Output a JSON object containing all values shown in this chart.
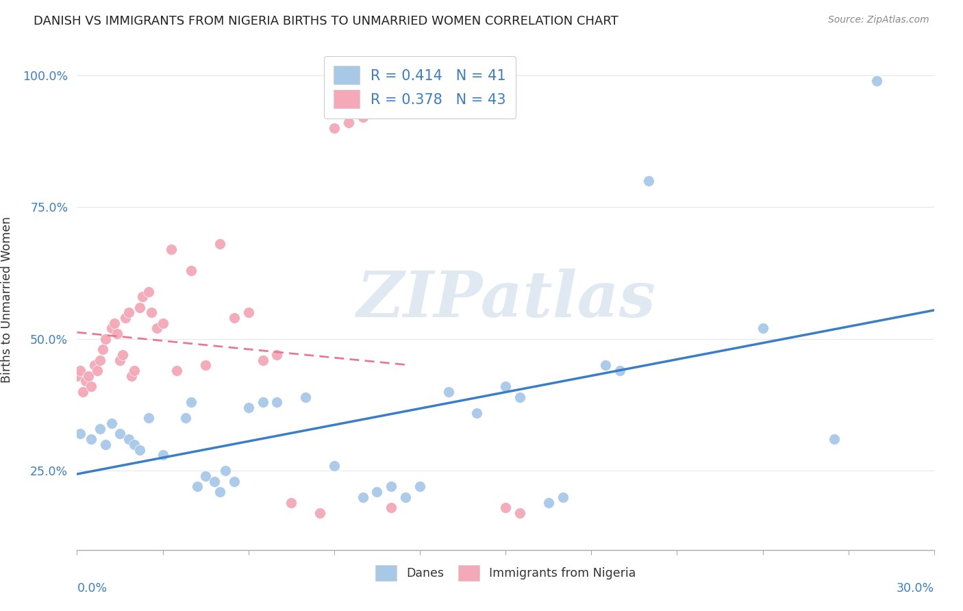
{
  "title": "DANISH VS IMMIGRANTS FROM NIGERIA BIRTHS TO UNMARRIED WOMEN CORRELATION CHART",
  "source": "Source: ZipAtlas.com",
  "ylabel": "Births to Unmarried Women",
  "yticks": [
    0.25,
    0.5,
    0.75,
    1.0
  ],
  "ytick_labels": [
    "25.0%",
    "50.0%",
    "75.0%",
    "100.0%"
  ],
  "xmin": 0.0,
  "xmax": 0.3,
  "ymin": 0.1,
  "ymax": 1.05,
  "danes_color": "#a8c8e8",
  "nigeria_color": "#f4a8b8",
  "danes_line_color": "#3a7ec8",
  "nigeria_line_color": "#e87a90",
  "legend_danes_label": "R = 0.414   N = 41",
  "legend_nigeria_label": "R = 0.378   N = 43",
  "danes_scatter_x": [
    0.001,
    0.005,
    0.008,
    0.01,
    0.012,
    0.015,
    0.018,
    0.02,
    0.022,
    0.025,
    0.03,
    0.038,
    0.04,
    0.042,
    0.045,
    0.048,
    0.05,
    0.052,
    0.055,
    0.06,
    0.065,
    0.07,
    0.08,
    0.09,
    0.1,
    0.105,
    0.11,
    0.115,
    0.12,
    0.13,
    0.14,
    0.15,
    0.155,
    0.165,
    0.17,
    0.185,
    0.19,
    0.2,
    0.24,
    0.265,
    0.28
  ],
  "danes_scatter_y": [
    0.32,
    0.31,
    0.33,
    0.3,
    0.34,
    0.32,
    0.31,
    0.3,
    0.29,
    0.35,
    0.28,
    0.35,
    0.38,
    0.22,
    0.24,
    0.23,
    0.21,
    0.25,
    0.23,
    0.37,
    0.38,
    0.38,
    0.39,
    0.26,
    0.2,
    0.21,
    0.22,
    0.2,
    0.22,
    0.4,
    0.36,
    0.41,
    0.39,
    0.19,
    0.2,
    0.45,
    0.44,
    0.8,
    0.52,
    0.31,
    0.99
  ],
  "nigeria_scatter_x": [
    0.0,
    0.001,
    0.002,
    0.003,
    0.004,
    0.005,
    0.006,
    0.007,
    0.008,
    0.009,
    0.01,
    0.012,
    0.013,
    0.014,
    0.015,
    0.016,
    0.017,
    0.018,
    0.019,
    0.02,
    0.022,
    0.023,
    0.025,
    0.026,
    0.028,
    0.03,
    0.033,
    0.035,
    0.04,
    0.045,
    0.05,
    0.055,
    0.06,
    0.065,
    0.07,
    0.075,
    0.085,
    0.09,
    0.095,
    0.1,
    0.11,
    0.15,
    0.155
  ],
  "nigeria_scatter_y": [
    0.43,
    0.44,
    0.4,
    0.42,
    0.43,
    0.41,
    0.45,
    0.44,
    0.46,
    0.48,
    0.5,
    0.52,
    0.53,
    0.51,
    0.46,
    0.47,
    0.54,
    0.55,
    0.43,
    0.44,
    0.56,
    0.58,
    0.59,
    0.55,
    0.52,
    0.53,
    0.67,
    0.44,
    0.63,
    0.45,
    0.68,
    0.54,
    0.55,
    0.46,
    0.47,
    0.19,
    0.17,
    0.9,
    0.91,
    0.92,
    0.18,
    0.18,
    0.17
  ],
  "watermark": "ZIPatlas",
  "watermark_color": "#c8d8e8",
  "background_color": "#ffffff",
  "grid_color": "#e8e8e8"
}
